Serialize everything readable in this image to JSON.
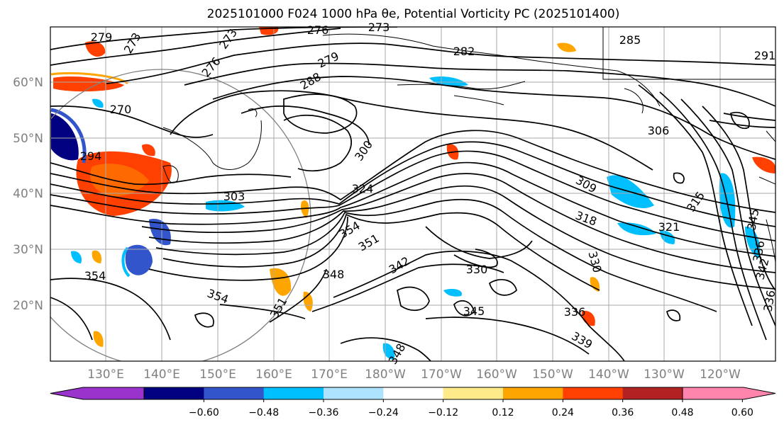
{
  "title": "2025101000 F024 1000 hPa θe, Potential Vorticity PC (2025101400)",
  "map": {
    "lon_labels": [
      "130°E",
      "140°E",
      "150°E",
      "160°E",
      "170°E",
      "180°W",
      "170°W",
      "160°W",
      "150°W",
      "140°W",
      "130°W",
      "120°W"
    ],
    "lat_labels": [
      "60°N",
      "50°N",
      "40°N",
      "30°N",
      "20°N"
    ],
    "contour_labels": [
      "279",
      "273",
      "273",
      "276",
      "273",
      "282",
      "279",
      "285",
      "291",
      "276",
      "288",
      "270",
      "294",
      "300",
      "306",
      "303",
      "324",
      "309",
      "315",
      "318",
      "321",
      "354",
      "351",
      "342",
      "330",
      "330",
      "354",
      "348",
      "345",
      "336",
      "339",
      "351",
      "348",
      "354",
      "342",
      "345",
      "336",
      "336"
    ]
  },
  "colorbar": {
    "ticks": [
      "−0.60",
      "−0.48",
      "−0.36",
      "−0.24",
      "−0.12",
      "0.12",
      "0.24",
      "0.36",
      "0.48",
      "0.60"
    ],
    "colors": [
      "#9933cc",
      "#000080",
      "#3355cc",
      "#00bfff",
      "#aee3ff",
      "#ffffff",
      "#ffea8a",
      "#ffa500",
      "#ff4000",
      "#b22222",
      "#ff85ad"
    ]
  }
}
